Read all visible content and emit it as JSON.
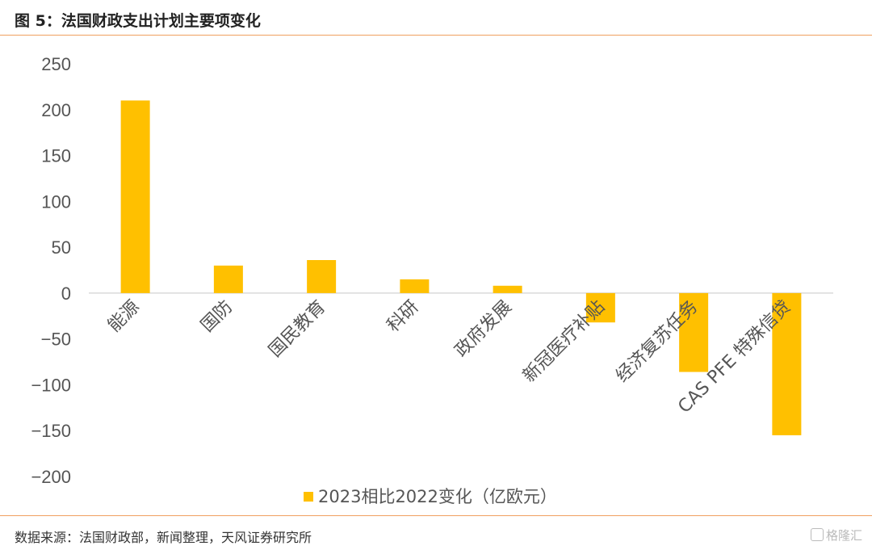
{
  "header": {
    "title": "图 5：法国财政支出计划主要项变化"
  },
  "footer": {
    "source": "数据来源：法国财政部，新闻整理，天风证券研究所",
    "watermark": "格隆汇"
  },
  "colors": {
    "bar": "#ffc000",
    "axis": "#d9d9d9",
    "rule": "#f0a060"
  },
  "chart_data": {
    "type": "bar",
    "title": "",
    "xlabel": "",
    "ylabel": "",
    "ylim": [
      -200,
      250
    ],
    "yticks": [
      "250",
      "200",
      "150",
      "100",
      "50",
      "0",
      "-50",
      "-100",
      "-150",
      "-200"
    ],
    "categories": [
      "能源",
      "国防",
      "国民教育",
      "科研",
      "政府发展",
      "新冠医疗补贴",
      "经济复苏任务",
      "CAS PFE 特殊信贷"
    ],
    "series": [
      {
        "name": "2023相比2022变化（亿欧元）",
        "values": [
          210,
          30,
          36,
          15,
          8,
          -32,
          -86,
          -155
        ]
      }
    ],
    "grid": false,
    "legend": "bottom"
  }
}
